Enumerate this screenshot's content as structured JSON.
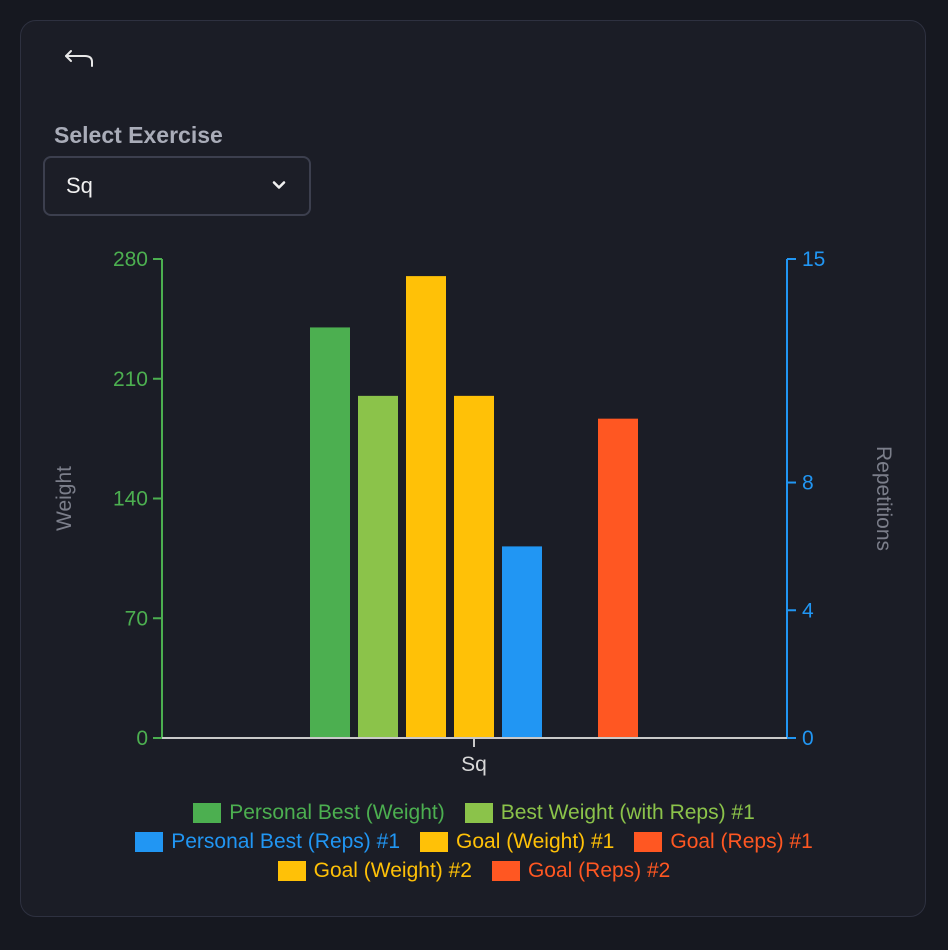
{
  "header": {
    "back_icon": "back-arrow-icon"
  },
  "exercise_select": {
    "label": "Select Exercise",
    "value": "Sq",
    "chevron_icon": "chevron-down-icon"
  },
  "colors": {
    "left_axis": "#4caf50",
    "right_axis": "#2196f3",
    "axis_title": "#7b7e8a",
    "baseline": "#c9c9c9"
  },
  "chart_data": {
    "type": "bar",
    "categories": [
      "Sq"
    ],
    "y_left": {
      "label": "Weight",
      "ticks": [
        0,
        70,
        140,
        210,
        280
      ],
      "range": [
        0,
        280
      ]
    },
    "y_right": {
      "label": "Repetitions",
      "ticks": [
        0,
        4,
        8,
        15
      ],
      "range": [
        0,
        15
      ]
    },
    "series": [
      {
        "name": "Personal Best (Weight)",
        "axis": "left",
        "color": "#4caf50",
        "values": [
          240
        ]
      },
      {
        "name": "Best Weight (with Reps) #1",
        "axis": "left",
        "color": "#8bc34a",
        "values": [
          200
        ]
      },
      {
        "name": "Goal (Weight) #1",
        "axis": "left",
        "color": "#ffc107",
        "values": [
          270
        ]
      },
      {
        "name": "Goal (Weight) #2",
        "axis": "left",
        "color": "#ffc107",
        "values": [
          200
        ]
      },
      {
        "name": "Personal Best (Reps) #1",
        "axis": "right",
        "color": "#2196f3",
        "values": [
          6
        ]
      },
      {
        "name": "Goal (Reps) #2",
        "axis": "right",
        "color": "#ff5722",
        "values": [
          0
        ]
      },
      {
        "name": "Goal (Reps) #1",
        "axis": "right",
        "color": "#ff5722",
        "values": [
          10
        ]
      }
    ],
    "legend_rows": [
      [
        "Personal Best (Weight)",
        "Best Weight (with Reps) #1"
      ],
      [
        "Personal Best (Reps) #1",
        "Goal (Weight) #1",
        "Goal (Reps) #1"
      ],
      [
        "Goal (Weight) #2",
        "Goal (Reps) #2"
      ]
    ]
  }
}
